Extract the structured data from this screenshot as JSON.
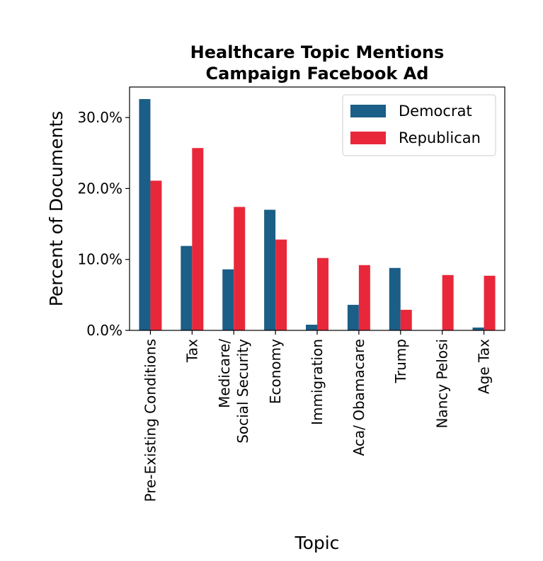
{
  "chart_data": {
    "type": "bar",
    "title": [
      "Healthcare Topic Mentions",
      "Campaign Facebook Ad"
    ],
    "xlabel": "Topic",
    "ylabel": "Percent of Documents",
    "categories": [
      [
        "Pre-Existing Conditions"
      ],
      [
        "Tax"
      ],
      [
        "Medicare/",
        "Social Security"
      ],
      [
        "Economy"
      ],
      [
        "Immigration"
      ],
      [
        "Aca/ Obamacare"
      ],
      [
        "Trump"
      ],
      [
        "Nancy Pelosi"
      ],
      [
        "Age Tax"
      ]
    ],
    "series": [
      {
        "name": "Democrat",
        "color": "#1b5e87",
        "values": [
          32.6,
          11.9,
          8.6,
          17.0,
          0.8,
          3.6,
          8.8,
          0.0,
          0.4
        ]
      },
      {
        "name": "Republican",
        "color": "#e8283a",
        "values": [
          21.1,
          25.7,
          17.4,
          12.8,
          10.2,
          9.2,
          2.9,
          7.8,
          7.7
        ]
      }
    ],
    "ylim": [
      0,
      34.3
    ],
    "yticks": [
      0,
      10,
      20,
      30
    ],
    "ytick_labels": [
      "0.0%",
      "10.0%",
      "20.0%",
      "30.0%"
    ],
    "grid": false,
    "legend": "top-right"
  }
}
